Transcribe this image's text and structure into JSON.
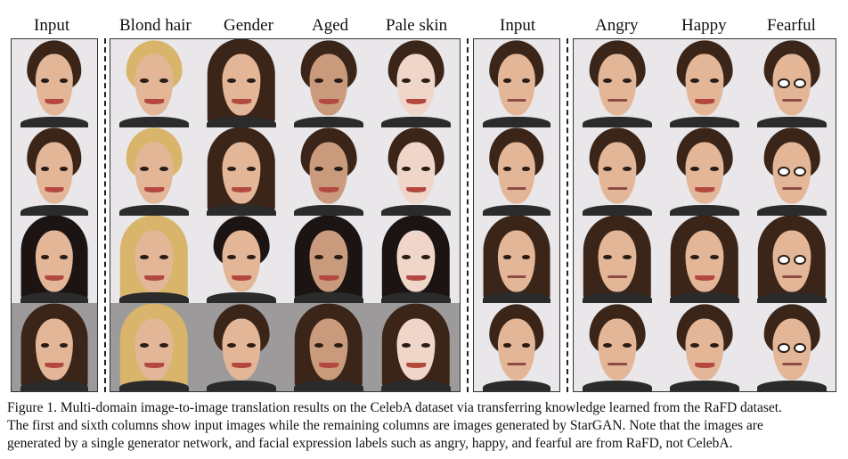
{
  "headers": [
    "Input",
    "Blond hair",
    "Gender",
    "Aged",
    "Pale skin",
    "Input",
    "Angry",
    "Happy",
    "Fearful"
  ],
  "caption_lines": [
    "Figure 1. Multi-domain image-to-image translation results on the CelebA dataset via transferring knowledge learned from the RaFD dataset.",
    "The first and sixth columns show input images while the remaining columns are images generated by StarGAN. Note that the images are",
    "generated by a single generator network, and facial expression labels such as angry, happy, and fearful are from RaFD, not CelebA."
  ],
  "colors": {
    "skin": "#e3b698",
    "pale_skin": "#f0d6c8",
    "aged_skin": "#c99a7c",
    "dark_hair": "#3a2518",
    "blond_hair": "#d8b56a",
    "black_hair": "#1b1413",
    "shirt": "#2b2b2b",
    "bg_light": "#e9e7ea",
    "bg_gray": "#9d9a9c"
  }
}
